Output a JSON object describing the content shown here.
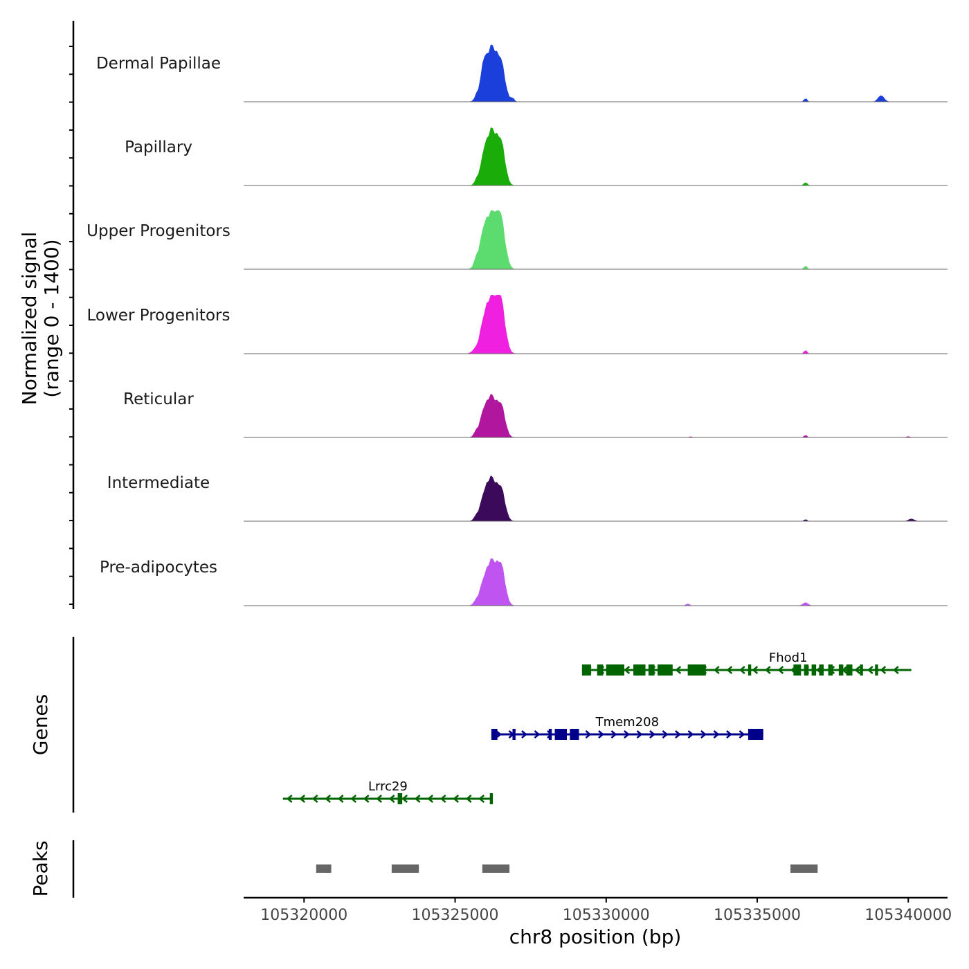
{
  "chart_data": {
    "type": "area",
    "title": "",
    "ylabel_line1": "Normalized signal",
    "ylabel_line2": "(range 0 - 1400)",
    "ylim": [
      0,
      1400
    ],
    "xlabel": "chr8 position (bp)",
    "xlim": [
      105318000,
      105341300
    ],
    "xticks": [
      105320000,
      105325000,
      105330000,
      105335000,
      105340000
    ],
    "xtick_labels": [
      "105320000",
      "105325000",
      "105330000",
      "105335000",
      "105340000"
    ],
    "tracks": [
      {
        "name": "Dermal Papillae",
        "color": "#1a3fdb",
        "peaks": [
          [
            105326200,
            1380,
            220
          ],
          [
            105326550,
            620,
            120
          ],
          [
            105325920,
            420,
            70
          ],
          [
            105325720,
            120,
            60
          ],
          [
            105326900,
            90,
            60
          ],
          [
            105336600,
            90,
            50
          ],
          [
            105339100,
            160,
            100
          ]
        ]
      },
      {
        "name": "Papillary",
        "color": "#1aad0a",
        "peaks": [
          [
            105326200,
            1400,
            220
          ],
          [
            105326550,
            700,
            120
          ],
          [
            105325920,
            220,
            70
          ],
          [
            105325720,
            100,
            60
          ],
          [
            105336600,
            80,
            60
          ]
        ]
      },
      {
        "name": "Upper Progenitors",
        "color": "#5cdb6e",
        "peaks": [
          [
            105326170,
            1400,
            230
          ],
          [
            105326520,
            950,
            140
          ],
          [
            105325900,
            260,
            80
          ],
          [
            105325700,
            180,
            70
          ],
          [
            105336600,
            90,
            50
          ]
        ]
      },
      {
        "name": "Lower Progenitors",
        "color": "#f020e0",
        "peaks": [
          [
            105326170,
            1400,
            220
          ],
          [
            105326520,
            1050,
            140
          ],
          [
            105325890,
            160,
            80
          ],
          [
            105325650,
            60,
            100
          ],
          [
            105336600,
            90,
            50
          ]
        ]
      },
      {
        "name": "Reticular",
        "color": "#b0169e",
        "peaks": [
          [
            105326180,
            1050,
            220
          ],
          [
            105326550,
            560,
            120
          ],
          [
            105325900,
            190,
            70
          ],
          [
            105325700,
            110,
            70
          ],
          [
            105336600,
            60,
            50
          ],
          [
            105332800,
            25,
            50
          ],
          [
            105340000,
            30,
            60
          ]
        ]
      },
      {
        "name": "Intermediate",
        "color": "#3b0a5a",
        "peaks": [
          [
            105326180,
            1100,
            220
          ],
          [
            105326550,
            560,
            120
          ],
          [
            105325900,
            140,
            70
          ],
          [
            105325700,
            80,
            70
          ],
          [
            105336600,
            50,
            50
          ],
          [
            105340100,
            60,
            100
          ]
        ]
      },
      {
        "name": "Pre-adipocytes",
        "color": "#c054f0",
        "peaks": [
          [
            105326200,
            1140,
            230
          ],
          [
            105326550,
            660,
            120
          ],
          [
            105325890,
            140,
            70
          ],
          [
            105325700,
            80,
            70
          ],
          [
            105336600,
            80,
            90
          ],
          [
            105332700,
            50,
            60
          ]
        ]
      }
    ],
    "genes_label": "Genes",
    "genes": [
      {
        "name": "Fhod1",
        "strand": "-",
        "color": "#006400",
        "start": 105329200,
        "end": 105340100,
        "row": 0,
        "exons": [
          [
            105329200,
            105329500
          ],
          [
            105329700,
            105329900
          ],
          [
            105330000,
            105330600
          ],
          [
            105330900,
            105331300
          ],
          [
            105331400,
            105331600
          ],
          [
            105331700,
            105332200
          ],
          [
            105332700,
            105333300
          ],
          [
            105334700,
            105334800
          ],
          [
            105336200,
            105336450
          ],
          [
            105336550,
            105336700
          ],
          [
            105336800,
            105336950
          ],
          [
            105337050,
            105337200
          ],
          [
            105337350,
            105337500
          ],
          [
            105337700,
            105337850
          ],
          [
            105337950,
            105338150
          ],
          [
            105338400,
            105338500
          ],
          [
            105338900,
            105339000
          ]
        ]
      },
      {
        "name": "Tmem208",
        "strand": "+",
        "color": "#00008b",
        "start": 105326200,
        "end": 105335200,
        "row": 1,
        "exons": [
          [
            105326200,
            105326400
          ],
          [
            105326900,
            105327000
          ],
          [
            105328100,
            105328200
          ],
          [
            105328300,
            105328700
          ],
          [
            105328800,
            105329100
          ],
          [
            105334700,
            105335200
          ]
        ]
      },
      {
        "name": "Lrrc29",
        "strand": "-",
        "color": "#006400",
        "start": 105319300,
        "end": 105326250,
        "row": 2,
        "exons": [
          [
            105323100,
            105323250
          ],
          [
            105326150,
            105326250
          ]
        ]
      }
    ],
    "peaks_label": "Peaks",
    "peak_regions": [
      [
        105320400,
        105320900
      ],
      [
        105322900,
        105323800
      ],
      [
        105325900,
        105326800
      ],
      [
        105336100,
        105337000
      ]
    ],
    "peak_color": "#666666"
  }
}
